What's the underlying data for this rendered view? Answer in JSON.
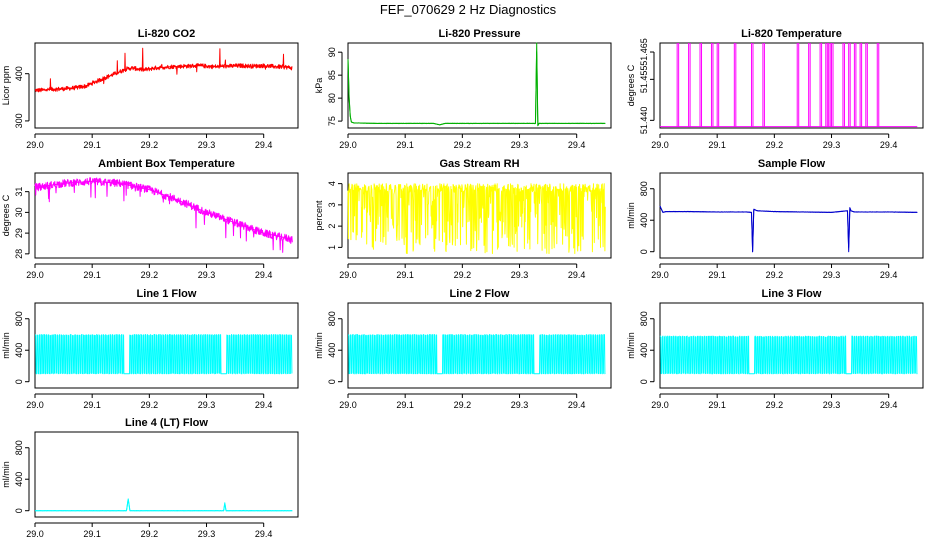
{
  "title": "FEF_070629  2 Hz Diagnostics",
  "chart_data": [
    {
      "type": "line",
      "title": "Li-820 CO2",
      "ylabel": "Licor ppm",
      "color": "#ff0000",
      "xlim": [
        29.0,
        29.46
      ],
      "ylim": [
        285,
        465
      ],
      "xticks": [
        "29.0",
        "29.1",
        "29.2",
        "29.3",
        "29.4"
      ],
      "yticks": [
        "300",
        "400"
      ],
      "ytick_values": [
        300,
        400
      ],
      "x": [
        29.0,
        29.01,
        29.02,
        29.03,
        29.05,
        29.07,
        29.08,
        29.09,
        29.1,
        29.11,
        29.12,
        29.13,
        29.14,
        29.15,
        29.16,
        29.17,
        29.18,
        29.19,
        29.2,
        29.21,
        29.22,
        29.23,
        29.24,
        29.25,
        29.26,
        29.27,
        29.28,
        29.29,
        29.3,
        29.31,
        29.32,
        29.33,
        29.34,
        29.36,
        29.38,
        29.4,
        29.42,
        29.44,
        29.45
      ],
      "values": [
        365,
        365,
        366,
        367,
        368,
        370,
        372,
        374,
        380,
        385,
        390,
        395,
        400,
        405,
        410,
        412,
        410,
        408,
        410,
        412,
        413,
        414,
        415,
        415,
        416,
        416,
        417,
        417,
        416,
        415,
        415,
        416,
        416,
        417,
        416,
        417,
        415,
        414,
        412
      ]
    },
    {
      "type": "line",
      "title": "Li-820 Pressure",
      "ylabel": "kPa",
      "color": "#00b000",
      "xlim": [
        29.0,
        29.46
      ],
      "ylim": [
        73.5,
        92
      ],
      "xticks": [
        "29.0",
        "29.1",
        "29.2",
        "29.3",
        "29.4"
      ],
      "yticks": [
        "75",
        "80",
        "85",
        "90"
      ],
      "ytick_values": [
        75,
        80,
        85,
        90
      ],
      "x": [
        29.0,
        29.002,
        29.004,
        29.006,
        29.01,
        29.05,
        29.1,
        29.15,
        29.16,
        29.17,
        29.2,
        29.25,
        29.3,
        29.328,
        29.33,
        29.332,
        29.334,
        29.34,
        29.4,
        29.45
      ],
      "values": [
        88.5,
        80.0,
        76.0,
        74.8,
        74.6,
        74.5,
        74.5,
        74.5,
        74.2,
        74.5,
        74.5,
        74.5,
        74.5,
        74.5,
        92.0,
        74.0,
        74.5,
        74.5,
        74.5,
        74.5
      ]
    },
    {
      "type": "line",
      "title": "Li-820 Temperature",
      "ylabel": "degrees C",
      "color": "#ff00ff",
      "xlim": [
        29.0,
        29.46
      ],
      "ylim": [
        51.4372,
        51.4683
      ],
      "xticks": [
        "29.0",
        "29.1",
        "29.2",
        "29.3",
        "29.4"
      ],
      "yticks": [
        "51.440",
        "51.455",
        "51.465"
      ],
      "ytick_values": [
        51.44,
        51.455,
        51.465
      ],
      "x": [
        29.0,
        29.45
      ],
      "values": [
        51.4377,
        51.4377
      ],
      "spikes": [
        29.03,
        29.05,
        29.07,
        29.09,
        29.1,
        29.13,
        29.16,
        29.18,
        29.24,
        29.26,
        29.28,
        29.29,
        29.295,
        29.3,
        29.32,
        29.33,
        29.34,
        29.35,
        29.36,
        29.38
      ],
      "spike_top": 51.4683
    },
    {
      "type": "line",
      "title": "Ambient Box Temperature",
      "ylabel": "degrees C",
      "color": "#ff00ff",
      "xlim": [
        29.0,
        29.46
      ],
      "ylim": [
        27.8,
        31.9
      ],
      "xticks": [
        "29.0",
        "29.1",
        "29.2",
        "29.3",
        "29.4"
      ],
      "yticks": [
        "28",
        "29",
        "30",
        "31"
      ],
      "ytick_values": [
        28,
        29,
        30,
        31
      ],
      "x": [
        29.0,
        29.05,
        29.1,
        29.15,
        29.2,
        29.25,
        29.3,
        29.35,
        29.4,
        29.45
      ],
      "values": [
        31.2,
        31.4,
        31.5,
        31.4,
        31.1,
        30.6,
        30.0,
        29.5,
        29.0,
        28.7
      ]
    },
    {
      "type": "line",
      "title": "Gas Stream RH",
      "ylabel": "percent",
      "color": "#ffff00",
      "xlim": [
        29.0,
        29.46
      ],
      "ylim": [
        0.5,
        4.5
      ],
      "xticks": [
        "29.0",
        "29.1",
        "29.2",
        "29.3",
        "29.4"
      ],
      "yticks": [
        "1",
        "2",
        "3",
        "4"
      ],
      "ytick_values": [
        1,
        2,
        3,
        4
      ],
      "x": [
        29.0,
        29.45
      ],
      "values": [
        4.0,
        4.0
      ],
      "low": 0.7
    },
    {
      "type": "line",
      "title": "Sample Flow",
      "ylabel": "ml/min",
      "color": "#0000cc",
      "xlim": [
        29.0,
        29.46
      ],
      "ylim": [
        -80,
        1000
      ],
      "xticks": [
        "29.0",
        "29.1",
        "29.2",
        "29.3",
        "29.4"
      ],
      "yticks": [
        "0",
        "400",
        "800"
      ],
      "ytick_values": [
        0,
        400,
        800
      ],
      "x": [
        29.0,
        29.005,
        29.01,
        29.05,
        29.1,
        29.15,
        29.16,
        29.162,
        29.164,
        29.17,
        29.2,
        29.25,
        29.3,
        29.328,
        29.33,
        29.332,
        29.334,
        29.34,
        29.4,
        29.45
      ],
      "values": [
        580,
        500,
        510,
        510,
        505,
        505,
        500,
        0,
        540,
        520,
        510,
        505,
        500,
        520,
        0,
        560,
        520,
        505,
        505,
        500
      ]
    },
    {
      "type": "line",
      "title": "Line 1 Flow",
      "ylabel": "ml/min",
      "color": "#00ffff",
      "xlim": [
        29.0,
        29.46
      ],
      "ylim": [
        -80,
        1000
      ],
      "xticks": [
        "29.0",
        "29.1",
        "29.2",
        "29.3",
        "29.4"
      ],
      "yticks": [
        "0",
        "400",
        "800"
      ],
      "ytick_values": [
        0,
        400,
        800
      ],
      "x": [
        29.0,
        29.45
      ],
      "values": [
        600,
        600
      ],
      "low": 100,
      "gaps": [
        [
          29.155,
          29.165
        ],
        [
          29.325,
          29.335
        ]
      ]
    },
    {
      "type": "line",
      "title": "Line 2 Flow",
      "ylabel": "ml/min",
      "color": "#00ffff",
      "xlim": [
        29.0,
        29.46
      ],
      "ylim": [
        -80,
        1000
      ],
      "xticks": [
        "29.0",
        "29.1",
        "29.2",
        "29.3",
        "29.4"
      ],
      "yticks": [
        "0",
        "400",
        "800"
      ],
      "ytick_values": [
        0,
        400,
        800
      ],
      "x": [
        29.0,
        29.45
      ],
      "values": [
        600,
        600
      ],
      "low": 100,
      "gaps": [
        [
          29.155,
          29.165
        ],
        [
          29.325,
          29.335
        ]
      ]
    },
    {
      "type": "line",
      "title": "Line 3 Flow",
      "ylabel": "ml/min",
      "color": "#00ffff",
      "xlim": [
        29.0,
        29.46
      ],
      "ylim": [
        -80,
        1000
      ],
      "xticks": [
        "29.0",
        "29.1",
        "29.2",
        "29.3",
        "29.4"
      ],
      "yticks": [
        "0",
        "400",
        "800"
      ],
      "ytick_values": [
        0,
        400,
        800
      ],
      "x": [
        29.0,
        29.45
      ],
      "values": [
        580,
        580
      ],
      "low": 100,
      "gaps": [
        [
          29.155,
          29.165
        ],
        [
          29.325,
          29.335
        ]
      ]
    },
    {
      "type": "line",
      "title": "Line 4 (LT) Flow",
      "ylabel": "ml/min",
      "color": "#00ffff",
      "xlim": [
        29.0,
        29.46
      ],
      "ylim": [
        -80,
        1000
      ],
      "xticks": [
        "29.0",
        "29.1",
        "29.2",
        "29.3",
        "29.4"
      ],
      "yticks": [
        "0",
        "400",
        "800"
      ],
      "ytick_values": [
        0,
        400,
        800
      ],
      "x": [
        29.0,
        29.16,
        29.163,
        29.166,
        29.17,
        29.33,
        29.332,
        29.334,
        29.34,
        29.45
      ],
      "values": [
        0,
        0,
        150,
        0,
        0,
        0,
        100,
        0,
        0,
        0
      ]
    }
  ]
}
